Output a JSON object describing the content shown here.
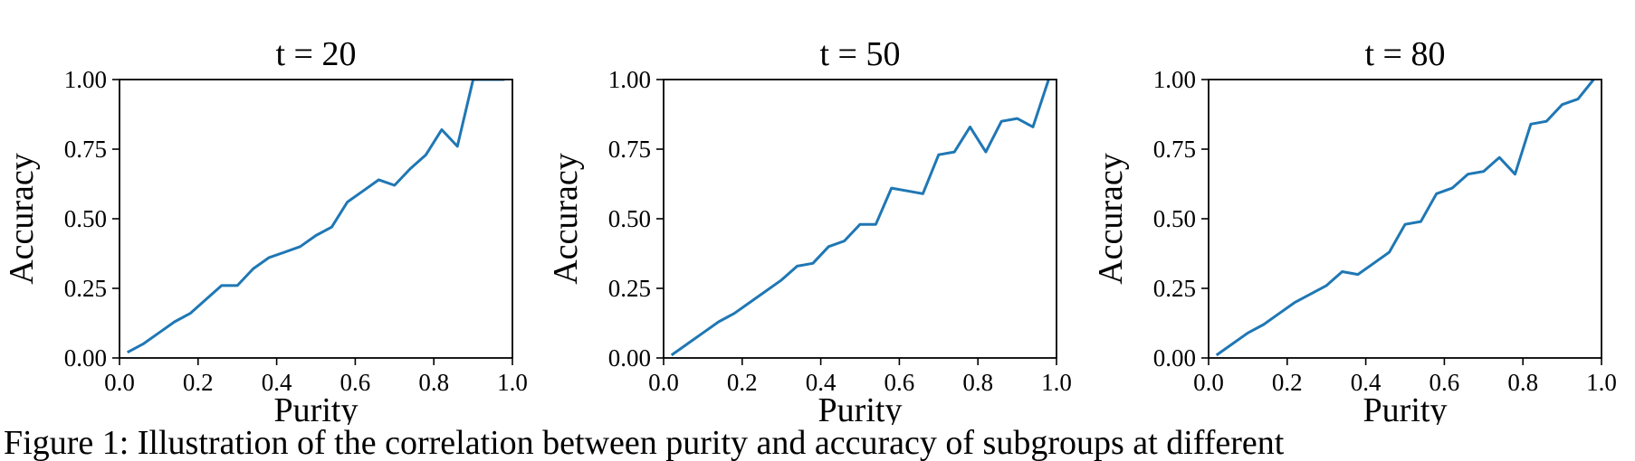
{
  "figure": {
    "caption_fragment": "Figure 1: Illustration of the correlation between purity and accuracy of subgroups at different"
  },
  "chart_data": [
    {
      "type": "line",
      "title": "t = 20",
      "xlabel": "Purity",
      "ylabel": "Accuracy",
      "xlim": [
        0.0,
        1.0
      ],
      "ylim": [
        0.0,
        1.0
      ],
      "xticks": [
        "0.0",
        "0.2",
        "0.4",
        "0.6",
        "0.8",
        "1.0"
      ],
      "yticks": [
        "0.00",
        "0.25",
        "0.50",
        "0.75",
        "1.00"
      ],
      "color": "#1f77b4",
      "x": [
        0.02,
        0.06,
        0.1,
        0.14,
        0.18,
        0.22,
        0.26,
        0.3,
        0.34,
        0.38,
        0.42,
        0.46,
        0.5,
        0.54,
        0.58,
        0.62,
        0.66,
        0.7,
        0.74,
        0.78,
        0.82,
        0.86,
        0.9,
        0.94,
        0.98
      ],
      "y": [
        0.02,
        0.05,
        0.09,
        0.13,
        0.16,
        0.21,
        0.26,
        0.26,
        0.32,
        0.36,
        0.38,
        0.4,
        0.44,
        0.47,
        0.56,
        0.6,
        0.64,
        0.62,
        0.68,
        0.73,
        0.82,
        0.76,
        1.0,
        1.0,
        1.0
      ]
    },
    {
      "type": "line",
      "title": "t = 50",
      "xlabel": "Purity",
      "ylabel": "Accuracy",
      "xlim": [
        0.0,
        1.0
      ],
      "ylim": [
        0.0,
        1.0
      ],
      "xticks": [
        "0.0",
        "0.2",
        "0.4",
        "0.6",
        "0.8",
        "1.0"
      ],
      "yticks": [
        "0.00",
        "0.25",
        "0.50",
        "0.75",
        "1.00"
      ],
      "color": "#1f77b4",
      "x": [
        0.02,
        0.06,
        0.1,
        0.14,
        0.18,
        0.22,
        0.26,
        0.3,
        0.34,
        0.38,
        0.42,
        0.46,
        0.5,
        0.54,
        0.58,
        0.62,
        0.66,
        0.7,
        0.74,
        0.78,
        0.82,
        0.86,
        0.9,
        0.94,
        0.98
      ],
      "y": [
        0.01,
        0.05,
        0.09,
        0.13,
        0.16,
        0.2,
        0.24,
        0.28,
        0.33,
        0.34,
        0.4,
        0.42,
        0.48,
        0.48,
        0.61,
        0.6,
        0.59,
        0.73,
        0.74,
        0.83,
        0.74,
        0.85,
        0.86,
        0.83,
        1.0
      ]
    },
    {
      "type": "line",
      "title": "t = 80",
      "xlabel": "Purity",
      "ylabel": "Accuracy",
      "xlim": [
        0.0,
        1.0
      ],
      "ylim": [
        0.0,
        1.0
      ],
      "xticks": [
        "0.0",
        "0.2",
        "0.4",
        "0.6",
        "0.8",
        "1.0"
      ],
      "yticks": [
        "0.00",
        "0.25",
        "0.50",
        "0.75",
        "1.00"
      ],
      "color": "#1f77b4",
      "x": [
        0.02,
        0.06,
        0.1,
        0.14,
        0.18,
        0.22,
        0.26,
        0.3,
        0.34,
        0.38,
        0.42,
        0.46,
        0.5,
        0.54,
        0.58,
        0.62,
        0.66,
        0.7,
        0.74,
        0.78,
        0.82,
        0.86,
        0.9,
        0.94,
        0.98
      ],
      "y": [
        0.01,
        0.05,
        0.09,
        0.12,
        0.16,
        0.2,
        0.23,
        0.26,
        0.31,
        0.3,
        0.34,
        0.38,
        0.48,
        0.49,
        0.59,
        0.61,
        0.66,
        0.67,
        0.72,
        0.66,
        0.84,
        0.85,
        0.91,
        0.93,
        1.0
      ]
    }
  ]
}
